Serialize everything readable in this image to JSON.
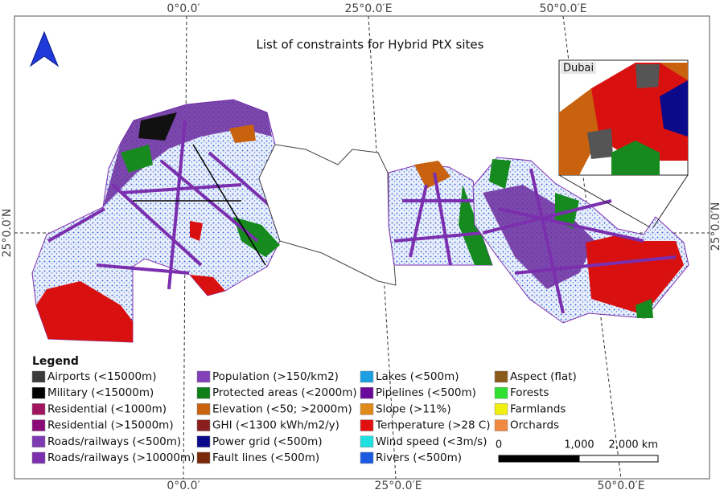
{
  "title": "List of constraints for Hybrid PtX sites",
  "graticule": {
    "top": [
      "0°0.0′",
      "25°0.0′E",
      "50°0.0′E"
    ],
    "bottom": [
      "0°0.0′",
      "25°0.0′E",
      "50°0.0′E"
    ],
    "left": [
      "25°0.0′N"
    ],
    "right": [
      "25°0.0′N"
    ]
  },
  "inset": {
    "label": "Dubai"
  },
  "legend": {
    "title": "Legend",
    "items": [
      {
        "label": "Airports (<15000m)",
        "color": "#3a3a3a"
      },
      {
        "label": "Military (<15000m)",
        "color": "#000000"
      },
      {
        "label": "Residential (<1000m)",
        "color": "#a0155e"
      },
      {
        "label": "Residential (>15000m)",
        "color": "#8a0a7a"
      },
      {
        "label": "Roads/railways (<500m)",
        "color": "#7e3ab0"
      },
      {
        "label": "Roads/railways (>10000m)",
        "color": "#7b2fae"
      },
      {
        "label": "Population (>150/km2)",
        "color": "#8340b8"
      },
      {
        "label": "Protected areas (<2000m)",
        "color": "#0f7f1a"
      },
      {
        "label": "Elevation (<50; >2000m)",
        "color": "#c8620e"
      },
      {
        "label": "GHI (<1300 kWh/m2/y)",
        "color": "#8a1f1f"
      },
      {
        "label": "Power grid (<500m)",
        "color": "#0a0a8a"
      },
      {
        "label": "Fault lines (<500m)",
        "color": "#7a2a0a"
      },
      {
        "label": "Lakes (<500m)",
        "color": "#1aa0e0"
      },
      {
        "label": "Pipelines (<500m)",
        "color": "#6a0a9a"
      },
      {
        "label": "Slope (>11%)",
        "color": "#e08a1a"
      },
      {
        "label": "Temperature (>28 C)",
        "color": "#e01010"
      },
      {
        "label": "Wind speed (<3m/s)",
        "color": "#20e0e0"
      },
      {
        "label": "Rivers (<500m)",
        "color": "#1a5ae0"
      },
      {
        "label": "Aspect (flat)",
        "color": "#8a5a1a"
      },
      {
        "label": "Forests",
        "color": "#30e030"
      },
      {
        "label": "Farmlands",
        "color": "#f0f010"
      },
      {
        "label": "Orchards",
        "color": "#f08a40"
      }
    ]
  },
  "scale_bar": {
    "labels": [
      "0",
      "1,000",
      "2,000 km"
    ]
  }
}
